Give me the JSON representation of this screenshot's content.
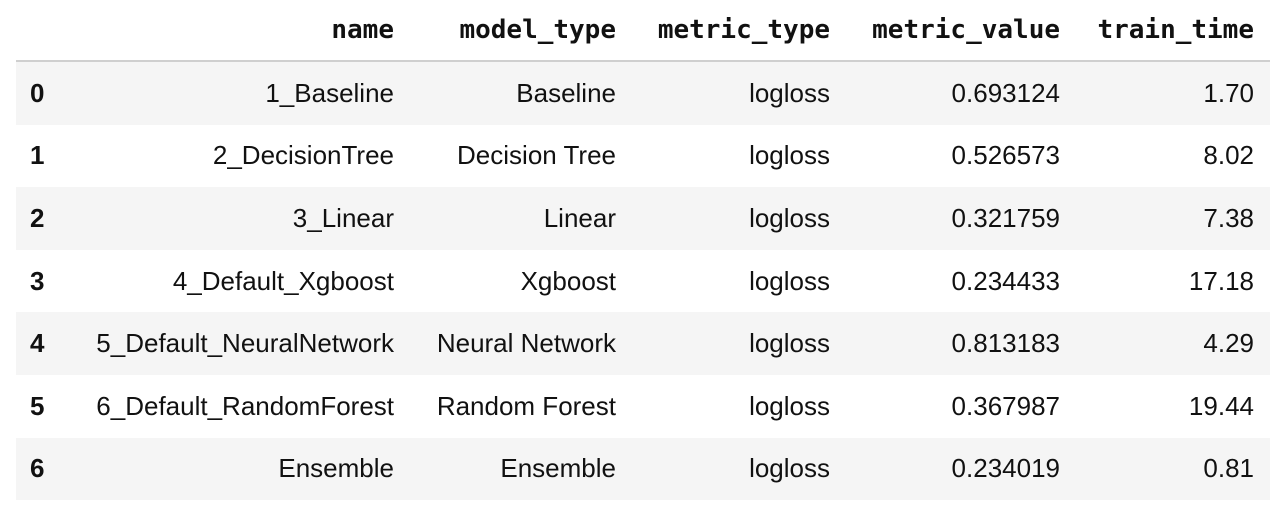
{
  "table": {
    "columns": [
      "",
      "name",
      "model_type",
      "metric_type",
      "metric_value",
      "train_time"
    ],
    "rows": [
      {
        "index": "0",
        "name": "1_Baseline",
        "model_type": "Baseline",
        "metric_type": "logloss",
        "metric_value": "0.693124",
        "train_time": "1.70"
      },
      {
        "index": "1",
        "name": "2_DecisionTree",
        "model_type": "Decision Tree",
        "metric_type": "logloss",
        "metric_value": "0.526573",
        "train_time": "8.02"
      },
      {
        "index": "2",
        "name": "3_Linear",
        "model_type": "Linear",
        "metric_type": "logloss",
        "metric_value": "0.321759",
        "train_time": "7.38"
      },
      {
        "index": "3",
        "name": "4_Default_Xgboost",
        "model_type": "Xgboost",
        "metric_type": "logloss",
        "metric_value": "0.234433",
        "train_time": "17.18"
      },
      {
        "index": "4",
        "name": "5_Default_NeuralNetwork",
        "model_type": "Neural Network",
        "metric_type": "logloss",
        "metric_value": "0.813183",
        "train_time": "4.29"
      },
      {
        "index": "5",
        "name": "6_Default_RandomForest",
        "model_type": "Random Forest",
        "metric_type": "logloss",
        "metric_value": "0.367987",
        "train_time": "19.44"
      },
      {
        "index": "6",
        "name": "Ensemble",
        "model_type": "Ensemble",
        "metric_type": "logloss",
        "metric_value": "0.234019",
        "train_time": "0.81"
      }
    ]
  }
}
